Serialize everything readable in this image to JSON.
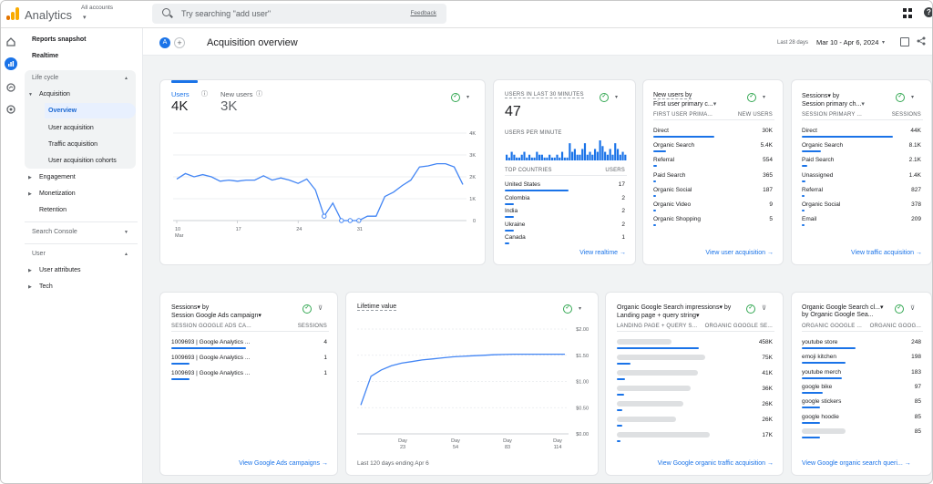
{
  "app": {
    "name": "Analytics",
    "account_label": "All accounts",
    "account_caret": "▾"
  },
  "search": {
    "placeholder": "Try searching \"add user\"",
    "feedback": "Feedback"
  },
  "icons": {
    "apps": "apps-grid-icon",
    "help": "help-icon",
    "rail": [
      "home-icon",
      "reports-icon",
      "explore-icon",
      "advertising-icon"
    ]
  },
  "colors": {
    "accent": "#1a73e8",
    "logo": [
      "#f9ab00",
      "#e37400"
    ],
    "ok": "#34a853"
  },
  "sidebar": {
    "reports_snapshot": "Reports snapshot",
    "realtime": "Realtime",
    "lifecycle": "Life cycle",
    "acquisition": "Acquisition",
    "overview": "Overview",
    "user_acquisition": "User acquisition",
    "traffic_acquisition": "Traffic acquisition",
    "cohorts": "User acquisition cohorts",
    "engagement": "Engagement",
    "monetization": "Monetization",
    "retention": "Retention",
    "search_console": "Search Console",
    "user": "User",
    "user_attributes": "User attributes",
    "tech": "Tech"
  },
  "header": {
    "avatar": "A",
    "add": "+",
    "title": "Acquisition overview",
    "range_label": "Last 28 days",
    "range_value": "Mar 10 - Apr 6, 2024",
    "range_caret": "▾"
  },
  "users_card": {
    "tab1_label": "Users",
    "tab1_value": "4K",
    "tab2_label": "New users",
    "tab2_value": "3K",
    "y_ticks": [
      "4K",
      "3K",
      "2K",
      "1K",
      "0"
    ],
    "x_ticks": [
      "10",
      "17",
      "24",
      "31"
    ],
    "x_month": "Mar"
  },
  "chart_data": [
    {
      "type": "line",
      "series": [
        {
          "values": [
            1900,
            2150,
            2000,
            2100,
            2000,
            1800,
            1850,
            1800,
            1850,
            1850,
            2050,
            1850,
            1950,
            1850,
            1700,
            1900,
            1400,
            200,
            800,
            0,
            0,
            0,
            200,
            200,
            1100,
            1300,
            1600,
            1850,
            2450,
            2500,
            2600,
            2600,
            2450,
            1650
          ]
        }
      ],
      "ylim": [
        0,
        4000
      ]
    },
    {
      "type": "bar",
      "values": [
        2,
        1,
        3,
        2,
        1,
        1,
        2,
        3,
        1,
        2,
        1,
        1,
        3,
        2,
        2,
        1,
        1,
        2,
        1,
        1,
        2,
        1,
        3,
        1,
        1,
        6,
        3,
        4,
        2,
        2,
        4,
        6,
        2,
        3,
        2,
        4,
        3,
        7,
        5,
        3,
        2,
        4,
        2,
        6,
        4,
        2,
        3,
        2
      ]
    },
    {
      "type": "line",
      "title": "Lifetime value",
      "series": [
        {
          "values": [
            0.55,
            1.1,
            1.22,
            1.3,
            1.35,
            1.38,
            1.41,
            1.43,
            1.45,
            1.47,
            1.48,
            1.49,
            1.5,
            1.51,
            1.515,
            1.52,
            1.52,
            1.52,
            1.52,
            1.52,
            1.52
          ]
        }
      ],
      "y_ticks": [
        "$2.00",
        "$1.50",
        "$1.00",
        "$0.50",
        "$0.00"
      ],
      "x_ticks": [
        "Day 23",
        "Day 54",
        "Day 83",
        "Day 114"
      ],
      "ylim": [
        0,
        2.0
      ]
    }
  ],
  "realtime_card": {
    "title": "USERS IN LAST 30 MINUTES",
    "value": "47",
    "per_minute": "USERS PER MINUTE",
    "col1": "TOP COUNTRIES",
    "col2": "USERS",
    "rows": [
      {
        "label": "United States",
        "value": "17",
        "pct": 0.85
      },
      {
        "label": "Colombia",
        "value": "2",
        "pct": 0.12
      },
      {
        "label": "India",
        "value": "2",
        "pct": 0.12
      },
      {
        "label": "Ukraine",
        "value": "2",
        "pct": 0.12
      },
      {
        "label": "Canada",
        "value": "1",
        "pct": 0.06
      }
    ],
    "link": "View realtime"
  },
  "newusers_card": {
    "title1": "New users by",
    "title2": "First user primary c...",
    "col1": "FIRST USER PRIMA...",
    "col2": "NEW USERS",
    "rows": [
      {
        "label": "Direct",
        "value": "30K",
        "pct": 0.95
      },
      {
        "label": "Organic Search",
        "value": "5.4K",
        "pct": 0.2
      },
      {
        "label": "Referral",
        "value": "554",
        "pct": 0.05
      },
      {
        "label": "Paid Search",
        "value": "365",
        "pct": 0.03
      },
      {
        "label": "Organic Social",
        "value": "187",
        "pct": 0.02
      },
      {
        "label": "Organic Video",
        "value": "9",
        "pct": 0.01
      },
      {
        "label": "Organic Shopping",
        "value": "5",
        "pct": 0.01
      }
    ],
    "link": "View user acquisition"
  },
  "sessions_card": {
    "title1": "Sessions▾ by",
    "title2": "Session primary ch...",
    "col1": "SESSION PRIMARY ...",
    "col2": "SESSIONS",
    "rows": [
      {
        "label": "Direct",
        "value": "44K",
        "pct": 0.95
      },
      {
        "label": "Organic Search",
        "value": "8.1K",
        "pct": 0.2
      },
      {
        "label": "Paid Search",
        "value": "2.1K",
        "pct": 0.06
      },
      {
        "label": "Unassigned",
        "value": "1.4K",
        "pct": 0.04
      },
      {
        "label": "Referral",
        "value": "827",
        "pct": 0.03
      },
      {
        "label": "Organic Social",
        "value": "378",
        "pct": 0.02
      },
      {
        "label": "Email",
        "value": "209",
        "pct": 0.01
      }
    ],
    "link": "View traffic acquisition"
  },
  "ads_card": {
    "title1": "Sessions▾ by",
    "title2": "Session Google Ads campaign▾",
    "col1": "SESSION GOOGLE ADS CA...",
    "col2": "SESSIONS",
    "rows": [
      {
        "label": "1009693 | Google Analytics ...",
        "value": "4",
        "pct": 0.68
      },
      {
        "label": "1009693 | Google Analytics ...",
        "value": "1",
        "pct": 0.17
      },
      {
        "label": "1009693 | Google Analytics ...",
        "value": "1",
        "pct": 0.17
      }
    ],
    "link": "View Google Ads campaigns"
  },
  "ltv_card": {
    "title": "Lifetime value",
    "footer": "Last 120 days ending Apr 6",
    "y_ticks": [
      "$2.00",
      "$1.50",
      "$1.00",
      "$0.50",
      "$0.00"
    ],
    "x_ticks": [
      {
        "a": "Day",
        "b": "23"
      },
      {
        "a": "Day",
        "b": "54"
      },
      {
        "a": "Day",
        "b": "83"
      },
      {
        "a": "Day",
        "b": "114"
      }
    ]
  },
  "organic_card": {
    "title1": "Organic Google Search impressions▾ by",
    "title2": "Landing page + query string▾",
    "col1": "LANDING PAGE + QUERY S...",
    "col2": "ORGANIC GOOGLE SE...",
    "rows": [
      {
        "value": "458K",
        "pct": 0.9
      },
      {
        "value": "75K",
        "pct": 0.15
      },
      {
        "value": "41K",
        "pct": 0.09
      },
      {
        "value": "36K",
        "pct": 0.08
      },
      {
        "value": "26K",
        "pct": 0.06
      },
      {
        "value": "26K",
        "pct": 0.06
      },
      {
        "value": "17K",
        "pct": 0.04
      }
    ],
    "link": "View Google organic traffic acquisition"
  },
  "clicks_card": {
    "title1": "Organic Google Search cl...▾",
    "title2": "by Organic Google Sea...",
    "col1": "ORGANIC GOOGLE ...",
    "col2": "ORGANIC GOOG...",
    "rows": [
      {
        "label": "youtube store",
        "value": "248",
        "pct": 0.9
      },
      {
        "label": "emoji kitchen",
        "value": "198",
        "pct": 0.72
      },
      {
        "label": "youtube merch",
        "value": "183",
        "pct": 0.66
      },
      {
        "label": "google bike",
        "value": "97",
        "pct": 0.35
      },
      {
        "label": "google stickers",
        "value": "85",
        "pct": 0.3
      },
      {
        "label": "google hoodie",
        "value": "85",
        "pct": 0.3
      },
      {
        "label": "",
        "value": "85",
        "pct": 0.3
      }
    ],
    "link": "View Google organic search queri..."
  }
}
